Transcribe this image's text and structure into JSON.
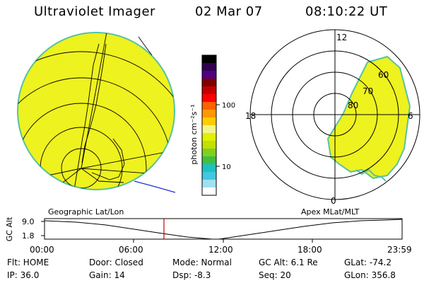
{
  "header": {
    "title": "Ultraviolet Imager",
    "date": "02 Mar 07",
    "time": "08:10:22 UT"
  },
  "colorbar": {
    "unit_label": "photon cm⁻²s⁻¹",
    "ticks": [
      "100",
      "10"
    ],
    "colors": [
      "#000000",
      "#300050",
      "#500080",
      "#800000",
      "#c00000",
      "#ff0000",
      "#ff6000",
      "#ff9900",
      "#ffcc00",
      "#f4f48a",
      "#e0f000",
      "#c0e000",
      "#80d020",
      "#40c040",
      "#20c0c0",
      "#40c8e0",
      "#a0e0f0",
      "#ffffff"
    ]
  },
  "left_panel": {
    "name": "Geographic Lat/Lon",
    "fill_color": "#eef21e",
    "edge_color": "#58c2a0"
  },
  "right_panel": {
    "name": "Apex MLat/MLT",
    "mlt_labels": {
      "top": "12",
      "left": "18",
      "right": "6",
      "bottom": "0"
    },
    "lat_labels": [
      "60",
      "70",
      "80"
    ]
  },
  "altitude_plot": {
    "ylabel": "GC Alt",
    "y_ticks": [
      "9.0",
      "1.8"
    ],
    "x_ticks": [
      "00:00",
      "06:00",
      "12:00",
      "18:00",
      "23:59"
    ],
    "marker_color": "#cc0000"
  },
  "status": {
    "row1": [
      {
        "key": "flt",
        "text": "Flt: HOME"
      },
      {
        "key": "door",
        "text": "Door: Closed"
      },
      {
        "key": "mode",
        "text": "Mode: Normal"
      },
      {
        "key": "gcalt",
        "text": "GC Alt: 6.1 Re"
      },
      {
        "key": "glat",
        "text": "GLat: -74.2"
      }
    ],
    "row2": [
      {
        "key": "ip",
        "text": "IP: 36.0"
      },
      {
        "key": "gain",
        "text": "Gain: 14"
      },
      {
        "key": "dsp",
        "text": "Dsp:    -8.3"
      },
      {
        "key": "seq",
        "text": "Seq: 20"
      },
      {
        "key": "glon",
        "text": "GLon: 356.8"
      }
    ]
  }
}
